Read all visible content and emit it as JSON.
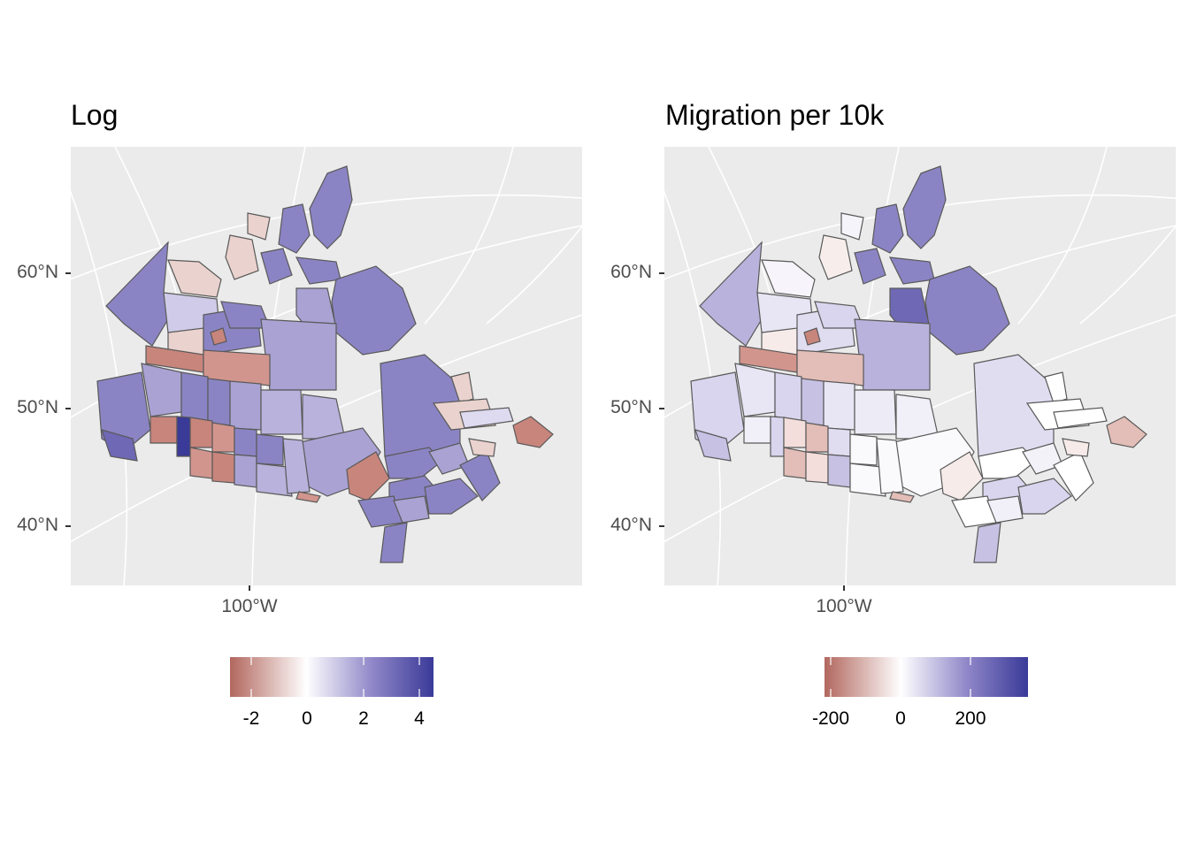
{
  "colors": {
    "low": "#b2675e",
    "mid": "#ffffff",
    "high": "#3a3a98",
    "panel_bg": "#ebebeb",
    "grid": "#ffffff",
    "border": "#595959"
  },
  "chart_data": [
    {
      "type": "choropleth-map",
      "title": "Log",
      "y_ticks": [
        "60°N",
        "50°N",
        "40°N"
      ],
      "x_ticks": [
        "100°W"
      ],
      "legend": {
        "position": "bottom",
        "labels": [
          "-2",
          "0",
          "2",
          "4"
        ],
        "values": [
          -2,
          0,
          2,
          4
        ],
        "range": [
          -2.7,
          4.5
        ]
      }
    },
    {
      "type": "choropleth-map",
      "title": "Migration per 10k",
      "y_ticks": [
        "60°N",
        "50°N",
        "40°N"
      ],
      "x_ticks": [
        "100°W"
      ],
      "legend": {
        "position": "bottom",
        "labels": [
          "-200",
          "0",
          "200"
        ],
        "values": [
          -200,
          0,
          200
        ],
        "range": [
          -270,
          370
        ]
      }
    }
  ]
}
